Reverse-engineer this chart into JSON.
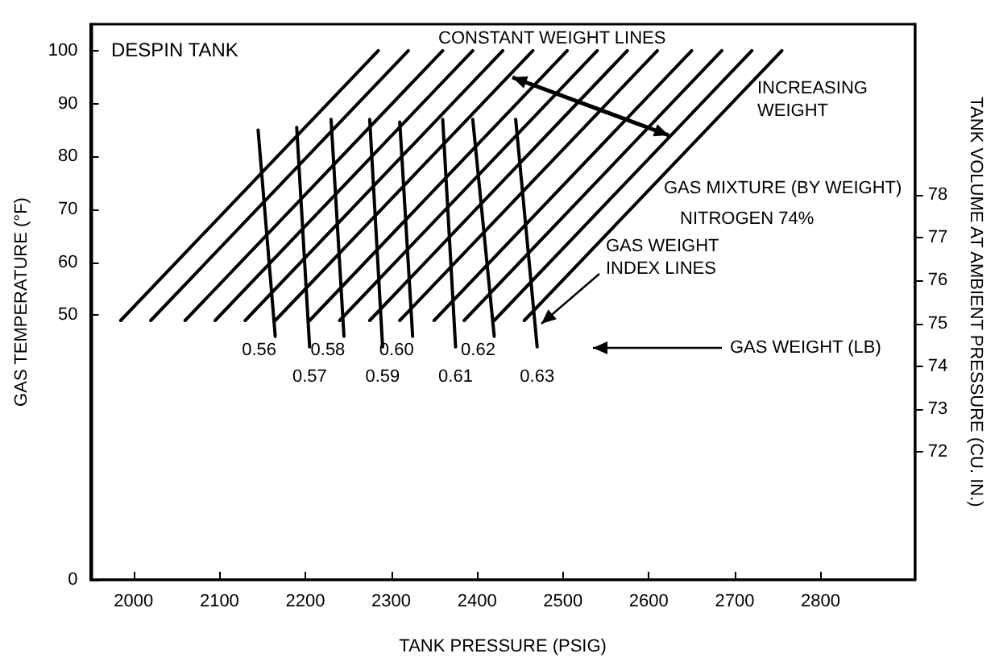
{
  "chart_data": {
    "type": "line",
    "title": "DESPIN TANK",
    "xlabel": "TANK PRESSURE (PSIG)",
    "ylabel": "GAS TEMPERATURE (°F)",
    "y2label": "TANK VOLUME AT AMBIENT PRESSURE (CU. IN.)",
    "xlim": [
      1950,
      2910
    ],
    "xticks": [
      2000,
      2100,
      2200,
      2300,
      2400,
      2500,
      2600,
      2700,
      2800
    ],
    "ylim": [
      0,
      105
    ],
    "yticks": [
      0,
      50,
      60,
      70,
      80,
      90,
      100
    ],
    "y2lim": [
      69,
      82
    ],
    "y2ticks": [
      72,
      73,
      74,
      75,
      76,
      77,
      78
    ],
    "grid": false,
    "marker": "none",
    "line_style": "solid",
    "series": [
      {
        "color": "#000000",
        "x": [
          1985,
          2285
        ],
        "values": [
          49,
          100
        ]
      },
      {
        "color": "#000000",
        "x": [
          2020,
          2320
        ],
        "values": [
          49,
          100
        ]
      },
      {
        "color": "#000000",
        "x": [
          2060,
          2360
        ],
        "values": [
          49,
          100
        ]
      },
      {
        "color": "#000000",
        "x": [
          2095,
          2395
        ],
        "values": [
          49,
          100
        ]
      },
      {
        "color": "#000000",
        "x": [
          2130,
          2430
        ],
        "values": [
          49,
          100
        ]
      },
      {
        "color": "#000000",
        "x": [
          2165,
          2465
        ],
        "values": [
          49,
          100
        ]
      },
      {
        "color": "#000000",
        "x": [
          2205,
          2505
        ],
        "values": [
          49,
          100
        ]
      },
      {
        "color": "#000000",
        "x": [
          2240,
          2540
        ],
        "values": [
          49,
          100
        ]
      },
      {
        "color": "#000000",
        "x": [
          2275,
          2575
        ],
        "values": [
          49,
          100
        ]
      },
      {
        "color": "#000000",
        "x": [
          2310,
          2610
        ],
        "values": [
          49,
          100
        ]
      },
      {
        "color": "#000000",
        "x": [
          2350,
          2650
        ],
        "values": [
          49,
          100
        ]
      },
      {
        "color": "#000000",
        "x": [
          2385,
          2685
        ],
        "values": [
          49,
          100
        ]
      },
      {
        "color": "#000000",
        "x": [
          2420,
          2720
        ],
        "values": [
          49,
          100
        ]
      },
      {
        "color": "#000000",
        "x": [
          2455,
          2755
        ],
        "values": [
          49,
          100
        ]
      },
      {
        "name": "0.56",
        "color": "#000000",
        "x": [
          2145,
          2165
        ],
        "values": [
          85,
          46
        ]
      },
      {
        "name": "0.57",
        "color": "#000000",
        "x": [
          2190,
          2205
        ],
        "values": [
          85.5,
          44
        ]
      },
      {
        "name": "0.58",
        "color": "#000000",
        "x": [
          2230,
          2245
        ],
        "values": [
          87,
          46
        ]
      },
      {
        "name": "0.59",
        "color": "#000000",
        "x": [
          2275,
          2290
        ],
        "values": [
          87,
          44
        ]
      },
      {
        "name": "0.60",
        "color": "#000000",
        "x": [
          2310,
          2325
        ],
        "values": [
          86.5,
          46
        ]
      },
      {
        "name": "0.61",
        "color": "#000000",
        "x": [
          2360,
          2375
        ],
        "values": [
          87,
          44
        ]
      },
      {
        "name": "0.62",
        "color": "#000000",
        "x": [
          2395,
          2420
        ],
        "values": [
          87,
          46
        ]
      },
      {
        "name": "0.63",
        "color": "#000000",
        "x": [
          2445,
          2470
        ],
        "values": [
          87,
          44
        ]
      }
    ],
    "annotations": [
      "CONSTANT WEIGHT LINES",
      "INCREASING WEIGHT",
      "GAS MIXTURE (BY WEIGHT)",
      "NITROGEN 74%",
      "GAS WEIGHT INDEX LINES",
      "GAS WEIGHT (LB)"
    ]
  }
}
